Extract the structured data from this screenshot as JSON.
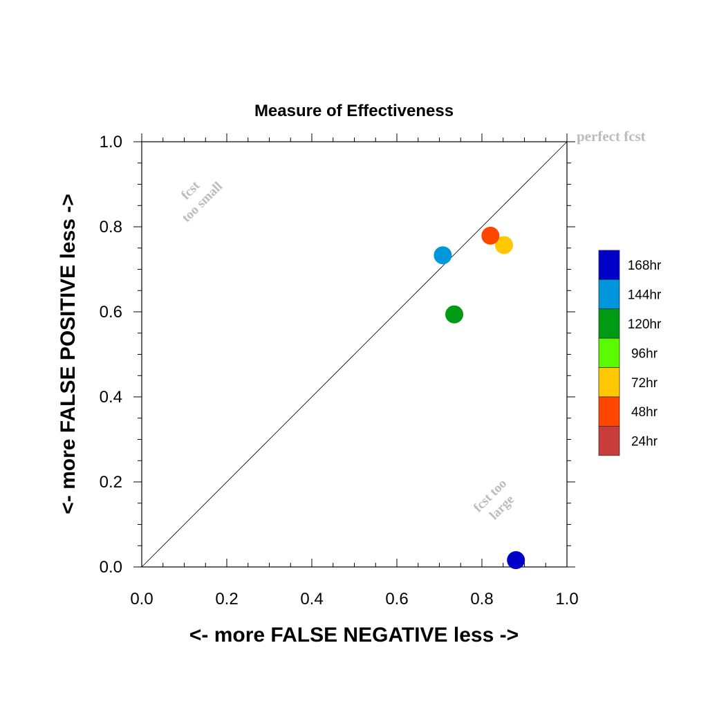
{
  "chart_data": {
    "type": "scatter",
    "title": "Measure of Effectiveness",
    "xlabel": "<- more   FALSE NEGATIVE   less ->",
    "ylabel": "<- more   FALSE POSITIVE   less ->",
    "xlim": [
      0,
      1
    ],
    "ylim": [
      0,
      1
    ],
    "xticks": [
      "0.0",
      "0.2",
      "0.4",
      "0.6",
      "0.8",
      "1.0"
    ],
    "yticks": [
      "0.0",
      "0.2",
      "0.4",
      "0.6",
      "0.8",
      "1.0"
    ],
    "grid": false,
    "legend_position": "right",
    "diagonal_line": true,
    "annotations": {
      "perfect": "perfect fcst",
      "too_small_1": "fcst",
      "too_small_2": "too small",
      "too_large_1": "fcst too",
      "too_large_2": "large"
    },
    "series": [
      {
        "name": "168hr",
        "color": "#0000c8",
        "x": 0.88,
        "y": 0.016
      },
      {
        "name": "144hr",
        "color": "#0096dc",
        "x": 0.708,
        "y": 0.733
      },
      {
        "name": "120hr",
        "color": "#009b14",
        "x": 0.735,
        "y": 0.594
      },
      {
        "name": "96hr",
        "color": "#5afa00",
        "x": null,
        "y": null
      },
      {
        "name": "72hr",
        "color": "#ffc800",
        "x": 0.852,
        "y": 0.757
      },
      {
        "name": "48hr",
        "color": "#ff4600",
        "x": 0.82,
        "y": 0.779
      },
      {
        "name": "24hr",
        "color": "#c83c3c",
        "x": null,
        "y": null
      }
    ]
  }
}
